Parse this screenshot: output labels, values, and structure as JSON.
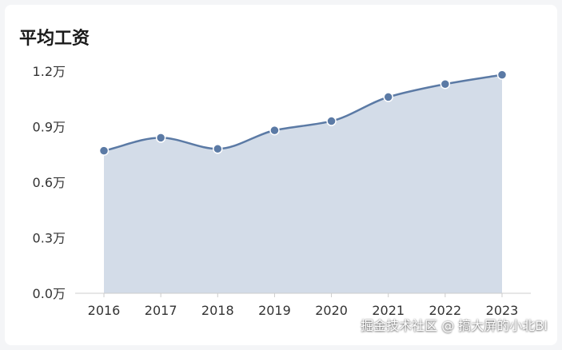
{
  "colors": {
    "line": "#5b7aa5",
    "area": "#d3dce8",
    "axis": "#cccccc",
    "text": "#333333"
  },
  "watermark": "掘金技术社区 @ 搞大屏的小北BI",
  "chart_data": {
    "type": "area",
    "title": "平均工资",
    "x": [
      "2016",
      "2017",
      "2018",
      "2019",
      "2020",
      "2021",
      "2022",
      "2023"
    ],
    "series": [
      {
        "values": [
          7700,
          8400,
          7800,
          8800,
          9300,
          10600,
          11300,
          11800
        ]
      }
    ],
    "ylim": [
      0,
      12000
    ],
    "yticks": [
      {
        "value": 0,
        "label": "0.0万"
      },
      {
        "value": 3000,
        "label": "0.3万"
      },
      {
        "value": 6000,
        "label": "0.6万"
      },
      {
        "value": 9000,
        "label": "0.9万"
      },
      {
        "value": 12000,
        "label": "1.2万"
      }
    ],
    "grid": false,
    "smooth": true,
    "markers": true
  }
}
